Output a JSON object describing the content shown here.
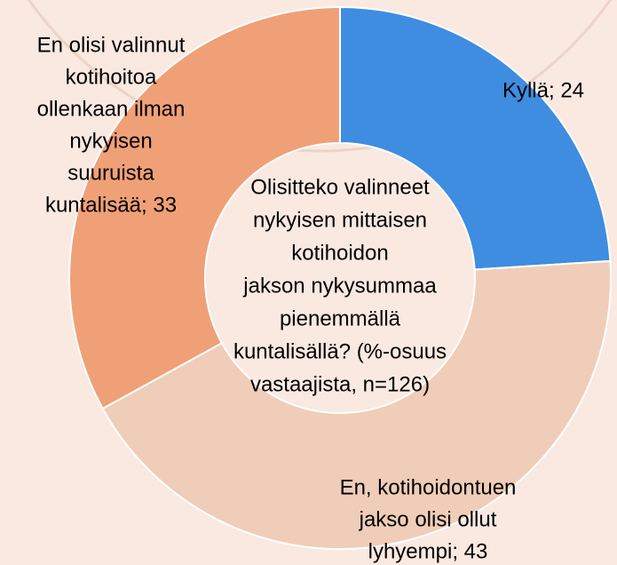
{
  "chart_data": {
    "type": "donut",
    "title": [
      "Olisitteko valinneet",
      "nykyisen mittaisen",
      "kotihoidon",
      "jakson nykysummaa",
      "pienemmällä",
      "kuntalisällä? (%-osuus",
      "vastaajista, n=126)"
    ],
    "labels": [
      [
        "Kyllä; 24"
      ],
      [
        "En, kotihoidontuen",
        "jakso olisi ollut",
        "lyhyempi; 43"
      ],
      [
        "En olisi valinnut",
        "kotihoitoa",
        "ollenkaan ilman",
        "nykyisen",
        "suuruista",
        "kuntalisää; 33"
      ]
    ],
    "values": [
      24,
      43,
      33
    ],
    "colors": [
      "#3e8de0",
      "#f0cdb8",
      "#f0a077"
    ]
  }
}
